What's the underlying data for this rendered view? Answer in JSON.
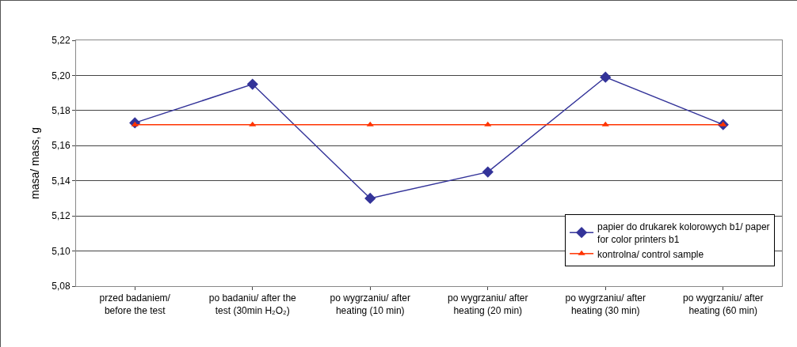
{
  "chart_data": {
    "type": "line",
    "ylabel": "masa/ mass, g",
    "categories": [
      "przed badaniem/\nbefore the test",
      "po badaniu/ after the\ntest (30min H₂O₂)",
      "po wygrzaniu/ after\nheating (10 min)",
      "po wygrzaniu/ after\nheating (20 min)",
      "po wygrzaniu/ after\nheating (30 min)",
      "po wygrzaniu/ after\nheating (60 min)"
    ],
    "series": [
      {
        "name": "papier do drukarek kolorowych b1/ paper\nfor color printers b1",
        "color": "#333399",
        "marker": "diamond",
        "values": [
          5.173,
          5.195,
          5.13,
          5.145,
          5.199,
          5.172
        ]
      },
      {
        "name": "kontrolna/ control sample",
        "color": "#ff3300",
        "marker": "triangle",
        "values": [
          5.172,
          5.172,
          5.172,
          5.172,
          5.172,
          5.172
        ]
      }
    ],
    "ylim": [
      5.08,
      5.22
    ],
    "yticks": [
      {
        "value": 5.08,
        "label": "5,08"
      },
      {
        "value": 5.1,
        "label": "5,10"
      },
      {
        "value": 5.12,
        "label": "5,12"
      },
      {
        "value": 5.14,
        "label": "5,14"
      },
      {
        "value": 5.16,
        "label": "5,16"
      },
      {
        "value": 5.18,
        "label": "5,18"
      },
      {
        "value": 5.2,
        "label": "5,20"
      },
      {
        "value": 5.22,
        "label": "5,22"
      }
    ],
    "grid": "y",
    "legend": "bottom right",
    "line_style": "solid"
  }
}
